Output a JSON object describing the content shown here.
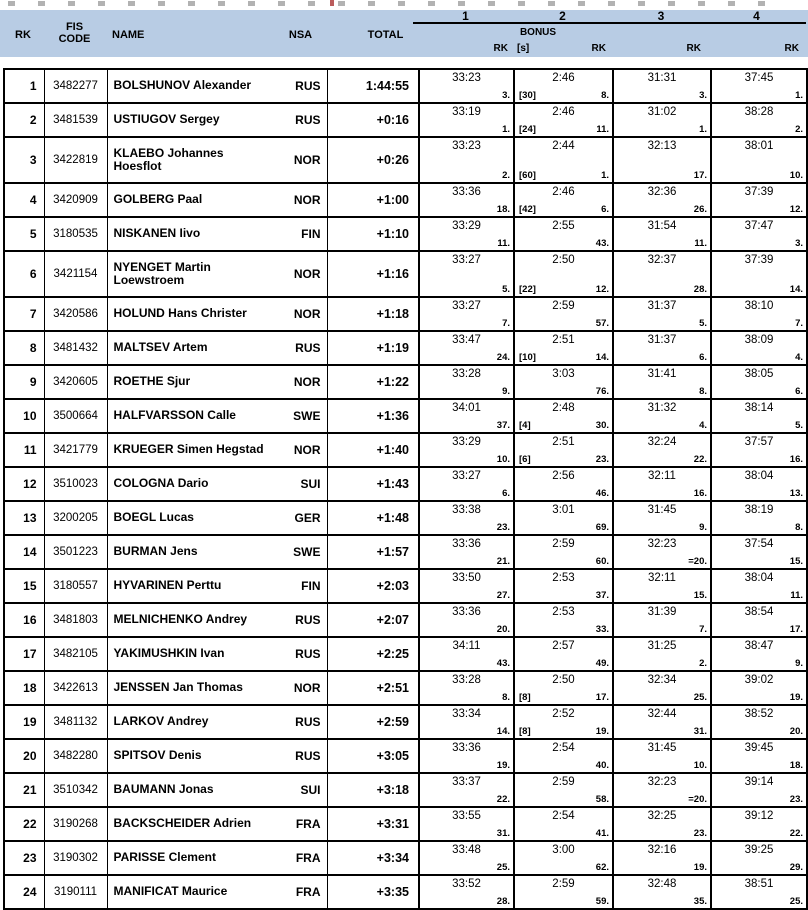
{
  "colors": {
    "header_bg": "#b8cce4",
    "border": "#000000",
    "text": "#000000"
  },
  "header": {
    "rk": "RK",
    "fis_code": "FIS\nCODE",
    "name": "NAME",
    "nsa": "NSA",
    "total": "TOTAL",
    "section_numbers": [
      "1",
      "2",
      "3",
      "4"
    ],
    "bonus": "BONUS",
    "bonus_unit": "[s]",
    "rk_sub_1": "RK",
    "rk_sub_2": "RK",
    "rk_sub_3": "RK",
    "rk_sub_4": "RK"
  },
  "rows": [
    {
      "rk": "1",
      "fis_code": "3482277",
      "name": "BOLSHUNOV Alexander",
      "nsa": "RUS",
      "total": "1:44:55",
      "sections": [
        {
          "time": "33:23",
          "rank": "3."
        },
        {
          "time": "2:46",
          "bonus": "[30]",
          "rank": "8."
        },
        {
          "time": "31:31",
          "rank": "3."
        },
        {
          "time": "37:45",
          "rank": "1."
        }
      ]
    },
    {
      "rk": "2",
      "fis_code": "3481539",
      "name": "USTIUGOV Sergey",
      "nsa": "RUS",
      "total": "+0:16",
      "sections": [
        {
          "time": "33:19",
          "rank": "1."
        },
        {
          "time": "2:46",
          "bonus": "[24]",
          "rank": "11."
        },
        {
          "time": "31:02",
          "rank": "1."
        },
        {
          "time": "38:28",
          "rank": "2."
        }
      ]
    },
    {
      "rk": "3",
      "fis_code": "3422819",
      "name": "KLAEBO Johannes Hoesflot",
      "nsa": "NOR",
      "total": "+0:26",
      "sections": [
        {
          "time": "33:23",
          "rank": "2."
        },
        {
          "time": "2:44",
          "bonus": "[60]",
          "rank": "1."
        },
        {
          "time": "32:13",
          "rank": "17."
        },
        {
          "time": "38:01",
          "rank": "10."
        }
      ]
    },
    {
      "rk": "4",
      "fis_code": "3420909",
      "name": "GOLBERG Paal",
      "nsa": "NOR",
      "total": "+1:00",
      "sections": [
        {
          "time": "33:36",
          "rank": "18."
        },
        {
          "time": "2:46",
          "bonus": "[42]",
          "rank": "6."
        },
        {
          "time": "32:36",
          "rank": "26."
        },
        {
          "time": "37:39",
          "rank": "12."
        }
      ]
    },
    {
      "rk": "5",
      "fis_code": "3180535",
      "name": "NISKANEN Iivo",
      "nsa": "FIN",
      "total": "+1:10",
      "sections": [
        {
          "time": "33:29",
          "rank": "11."
        },
        {
          "time": "2:55",
          "rank": "43."
        },
        {
          "time": "31:54",
          "rank": "11."
        },
        {
          "time": "37:47",
          "rank": "3."
        }
      ]
    },
    {
      "rk": "6",
      "fis_code": "3421154",
      "name": "NYENGET Martin Loewstroem",
      "nsa": "NOR",
      "total": "+1:16",
      "sections": [
        {
          "time": "33:27",
          "rank": "5."
        },
        {
          "time": "2:50",
          "bonus": "[22]",
          "rank": "12."
        },
        {
          "time": "32:37",
          "rank": "28."
        },
        {
          "time": "37:39",
          "rank": "14."
        }
      ]
    },
    {
      "rk": "7",
      "fis_code": "3420586",
      "name": "HOLUND Hans Christer",
      "nsa": "NOR",
      "total": "+1:18",
      "sections": [
        {
          "time": "33:27",
          "rank": "7."
        },
        {
          "time": "2:59",
          "rank": "57."
        },
        {
          "time": "31:37",
          "rank": "5."
        },
        {
          "time": "38:10",
          "rank": "7."
        }
      ]
    },
    {
      "rk": "8",
      "fis_code": "3481432",
      "name": "MALTSEV Artem",
      "nsa": "RUS",
      "total": "+1:19",
      "sections": [
        {
          "time": "33:47",
          "rank": "24."
        },
        {
          "time": "2:51",
          "bonus": "[10]",
          "rank": "14."
        },
        {
          "time": "31:37",
          "rank": "6."
        },
        {
          "time": "38:09",
          "rank": "4."
        }
      ]
    },
    {
      "rk": "9",
      "fis_code": "3420605",
      "name": "ROETHE Sjur",
      "nsa": "NOR",
      "total": "+1:22",
      "sections": [
        {
          "time": "33:28",
          "rank": "9."
        },
        {
          "time": "3:03",
          "rank": "76."
        },
        {
          "time": "31:41",
          "rank": "8."
        },
        {
          "time": "38:05",
          "rank": "6."
        }
      ]
    },
    {
      "rk": "10",
      "fis_code": "3500664",
      "name": "HALFVARSSON Calle",
      "nsa": "SWE",
      "total": "+1:36",
      "sections": [
        {
          "time": "34:01",
          "rank": "37."
        },
        {
          "time": "2:48",
          "bonus": "[4]",
          "rank": "30."
        },
        {
          "time": "31:32",
          "rank": "4."
        },
        {
          "time": "38:14",
          "rank": "5."
        }
      ]
    },
    {
      "rk": "11",
      "fis_code": "3421779",
      "name": "KRUEGER Simen Hegstad",
      "nsa": "NOR",
      "total": "+1:40",
      "sections": [
        {
          "time": "33:29",
          "rank": "10."
        },
        {
          "time": "2:51",
          "bonus": "[6]",
          "rank": "23."
        },
        {
          "time": "32:24",
          "rank": "22."
        },
        {
          "time": "37:57",
          "rank": "16."
        }
      ]
    },
    {
      "rk": "12",
      "fis_code": "3510023",
      "name": "COLOGNA Dario",
      "nsa": "SUI",
      "total": "+1:43",
      "sections": [
        {
          "time": "33:27",
          "rank": "6."
        },
        {
          "time": "2:56",
          "rank": "46."
        },
        {
          "time": "32:11",
          "rank": "16."
        },
        {
          "time": "38:04",
          "rank": "13."
        }
      ]
    },
    {
      "rk": "13",
      "fis_code": "3200205",
      "name": "BOEGL Lucas",
      "nsa": "GER",
      "total": "+1:48",
      "sections": [
        {
          "time": "33:38",
          "rank": "23."
        },
        {
          "time": "3:01",
          "rank": "69."
        },
        {
          "time": "31:45",
          "rank": "9."
        },
        {
          "time": "38:19",
          "rank": "8."
        }
      ]
    },
    {
      "rk": "14",
      "fis_code": "3501223",
      "name": "BURMAN Jens",
      "nsa": "SWE",
      "total": "+1:57",
      "sections": [
        {
          "time": "33:36",
          "rank": "21."
        },
        {
          "time": "2:59",
          "rank": "60."
        },
        {
          "time": "32:23",
          "rank": "=20."
        },
        {
          "time": "37:54",
          "rank": "15."
        }
      ]
    },
    {
      "rk": "15",
      "fis_code": "3180557",
      "name": "HYVARINEN Perttu",
      "nsa": "FIN",
      "total": "+2:03",
      "sections": [
        {
          "time": "33:50",
          "rank": "27."
        },
        {
          "time": "2:53",
          "rank": "37."
        },
        {
          "time": "32:11",
          "rank": "15."
        },
        {
          "time": "38:04",
          "rank": "11."
        }
      ]
    },
    {
      "rk": "16",
      "fis_code": "3481803",
      "name": "MELNICHENKO Andrey",
      "nsa": "RUS",
      "total": "+2:07",
      "sections": [
        {
          "time": "33:36",
          "rank": "20."
        },
        {
          "time": "2:53",
          "rank": "33."
        },
        {
          "time": "31:39",
          "rank": "7."
        },
        {
          "time": "38:54",
          "rank": "17."
        }
      ]
    },
    {
      "rk": "17",
      "fis_code": "3482105",
      "name": "YAKIMUSHKIN Ivan",
      "nsa": "RUS",
      "total": "+2:25",
      "sections": [
        {
          "time": "34:11",
          "rank": "43."
        },
        {
          "time": "2:57",
          "rank": "49."
        },
        {
          "time": "31:25",
          "rank": "2."
        },
        {
          "time": "38:47",
          "rank": "9."
        }
      ]
    },
    {
      "rk": "18",
      "fis_code": "3422613",
      "name": "JENSSEN Jan Thomas",
      "nsa": "NOR",
      "total": "+2:51",
      "sections": [
        {
          "time": "33:28",
          "rank": "8."
        },
        {
          "time": "2:50",
          "bonus": "[8]",
          "rank": "17."
        },
        {
          "time": "32:34",
          "rank": "25."
        },
        {
          "time": "39:02",
          "rank": "19."
        }
      ]
    },
    {
      "rk": "19",
      "fis_code": "3481132",
      "name": "LARKOV Andrey",
      "nsa": "RUS",
      "total": "+2:59",
      "sections": [
        {
          "time": "33:34",
          "rank": "14."
        },
        {
          "time": "2:52",
          "bonus": "[8]",
          "rank": "19."
        },
        {
          "time": "32:44",
          "rank": "31."
        },
        {
          "time": "38:52",
          "rank": "20."
        }
      ]
    },
    {
      "rk": "20",
      "fis_code": "3482280",
      "name": "SPITSOV Denis",
      "nsa": "RUS",
      "total": "+3:05",
      "sections": [
        {
          "time": "33:36",
          "rank": "19."
        },
        {
          "time": "2:54",
          "rank": "40."
        },
        {
          "time": "31:45",
          "rank": "10."
        },
        {
          "time": "39:45",
          "rank": "18."
        }
      ]
    },
    {
      "rk": "21",
      "fis_code": "3510342",
      "name": "BAUMANN Jonas",
      "nsa": "SUI",
      "total": "+3:18",
      "sections": [
        {
          "time": "33:37",
          "rank": "22."
        },
        {
          "time": "2:59",
          "rank": "58."
        },
        {
          "time": "32:23",
          "rank": "=20."
        },
        {
          "time": "39:14",
          "rank": "23."
        }
      ]
    },
    {
      "rk": "22",
      "fis_code": "3190268",
      "name": "BACKSCHEIDER Adrien",
      "nsa": "FRA",
      "total": "+3:31",
      "sections": [
        {
          "time": "33:55",
          "rank": "31."
        },
        {
          "time": "2:54",
          "rank": "41."
        },
        {
          "time": "32:25",
          "rank": "23."
        },
        {
          "time": "39:12",
          "rank": "22."
        }
      ]
    },
    {
      "rk": "23",
      "fis_code": "3190302",
      "name": "PARISSE Clement",
      "nsa": "FRA",
      "total": "+3:34",
      "sections": [
        {
          "time": "33:48",
          "rank": "25."
        },
        {
          "time": "3:00",
          "rank": "62."
        },
        {
          "time": "32:16",
          "rank": "19."
        },
        {
          "time": "39:25",
          "rank": "29."
        }
      ]
    },
    {
      "rk": "24",
      "fis_code": "3190111",
      "name": "MANIFICAT Maurice",
      "nsa": "FRA",
      "total": "+3:35",
      "sections": [
        {
          "time": "33:52",
          "rank": "28."
        },
        {
          "time": "2:59",
          "rank": "59."
        },
        {
          "time": "32:48",
          "rank": "35."
        },
        {
          "time": "38:51",
          "rank": "25."
        }
      ]
    }
  ]
}
